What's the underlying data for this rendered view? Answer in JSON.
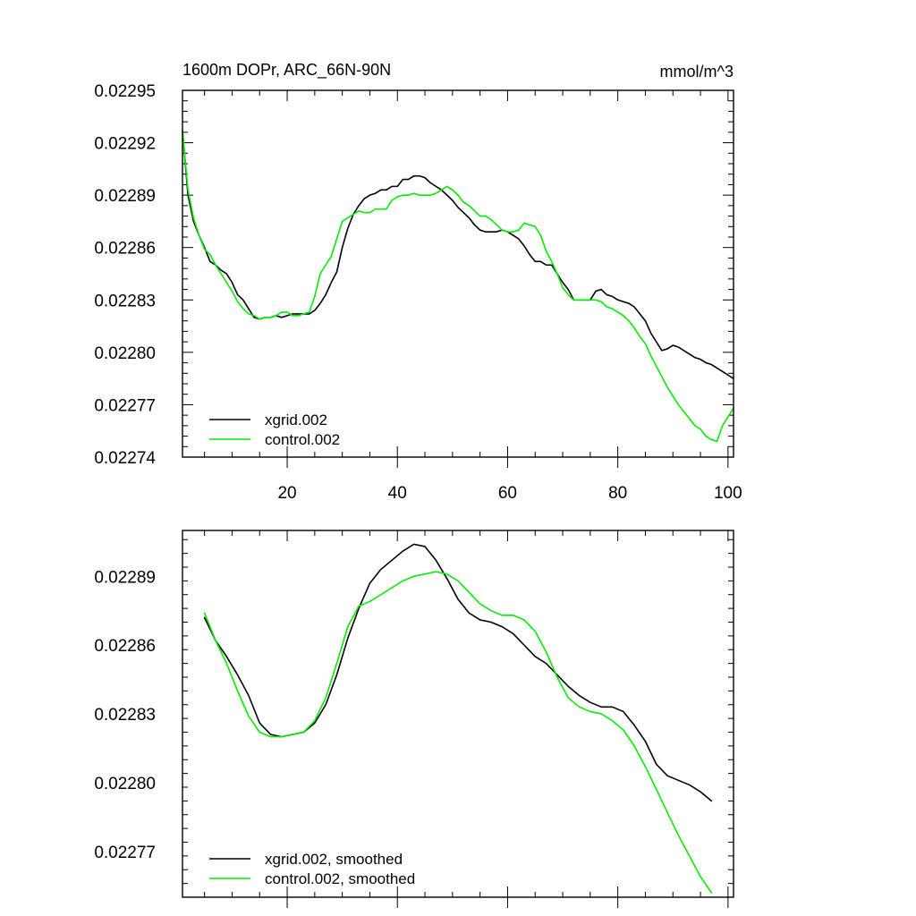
{
  "colors": {
    "series1": "#000000",
    "series2": "#00ee00",
    "axis": "#000000",
    "background": "#ffffff"
  },
  "chart_data": [
    {
      "type": "line",
      "title": "1600m DOPr, ARC_66N-90N",
      "units": "mmol/m^3",
      "xlabel": "",
      "ylabel": "",
      "xlim": [
        1,
        101
      ],
      "ylim": [
        0.02274,
        0.02295
      ],
      "x_major_ticks": [
        20,
        40,
        60,
        80,
        100
      ],
      "x_tick_labels": [
        "20",
        "40",
        "60",
        "80",
        "100"
      ],
      "y_major_ticks": [
        0.02274,
        0.02277,
        0.0228,
        0.02283,
        0.02286,
        0.02289,
        0.02292,
        0.02295
      ],
      "y_tick_labels": [
        "0.02274",
        "0.02277",
        "0.02280",
        "0.02283",
        "0.02286",
        "0.02289",
        "0.02292",
        "0.02295"
      ],
      "legend_position": "bottom-left",
      "series": [
        {
          "name": "xgrid.002",
          "color": "#000000",
          "x": [
            1,
            2,
            3,
            4,
            5,
            6,
            7,
            8,
            9,
            10,
            11,
            12,
            13,
            14,
            15,
            16,
            17,
            18,
            19,
            20,
            21,
            22,
            23,
            24,
            25,
            26,
            27,
            28,
            29,
            30,
            31,
            32,
            33,
            34,
            35,
            36,
            37,
            38,
            39,
            40,
            41,
            42,
            43,
            44,
            45,
            46,
            47,
            48,
            49,
            50,
            51,
            52,
            53,
            54,
            55,
            56,
            57,
            58,
            59,
            60,
            61,
            62,
            63,
            64,
            65,
            66,
            67,
            68,
            69,
            70,
            71,
            72,
            73,
            74,
            75,
            76,
            77,
            78,
            79,
            80,
            81,
            82,
            83,
            84,
            85,
            86,
            87,
            88,
            89,
            90,
            91,
            92,
            93,
            94,
            95,
            96,
            97,
            98,
            99,
            100,
            101
          ],
          "values": [
            0.022927,
            0.02289,
            0.022875,
            0.022867,
            0.02286,
            0.022852,
            0.02285,
            0.022847,
            0.022845,
            0.02284,
            0.022833,
            0.02283,
            0.022825,
            0.02282,
            0.022819,
            0.02282,
            0.02282,
            0.022821,
            0.02282,
            0.022821,
            0.022822,
            0.022822,
            0.022822,
            0.022822,
            0.022824,
            0.022828,
            0.022833,
            0.02284,
            0.022846,
            0.02286,
            0.022871,
            0.022879,
            0.022884,
            0.022888,
            0.02289,
            0.022891,
            0.022893,
            0.022893,
            0.022895,
            0.022895,
            0.022899,
            0.022899,
            0.022901,
            0.022901,
            0.0229,
            0.022897,
            0.022895,
            0.022893,
            0.02289,
            0.022887,
            0.022883,
            0.02288,
            0.022877,
            0.022873,
            0.02287,
            0.022869,
            0.022869,
            0.022869,
            0.02287,
            0.022869,
            0.022867,
            0.022865,
            0.022861,
            0.022856,
            0.022852,
            0.022852,
            0.02285,
            0.02285,
            0.022845,
            0.02284,
            0.022836,
            0.02283,
            0.02283,
            0.02283,
            0.02283,
            0.022835,
            0.022836,
            0.022833,
            0.022832,
            0.02283,
            0.022829,
            0.022828,
            0.022826,
            0.022822,
            0.022818,
            0.022811,
            0.022806,
            0.022801,
            0.022802,
            0.022804,
            0.022803,
            0.022801,
            0.022799,
            0.022797,
            0.022796,
            0.022794,
            0.022793,
            0.022791,
            0.022789,
            0.022787,
            0.022785
          ]
        },
        {
          "name": "control.002",
          "color": "#00ee00",
          "x": [
            1,
            2,
            3,
            4,
            5,
            6,
            7,
            8,
            9,
            10,
            11,
            12,
            13,
            14,
            15,
            16,
            17,
            18,
            19,
            20,
            21,
            22,
            23,
            24,
            25,
            26,
            27,
            28,
            29,
            30,
            31,
            32,
            33,
            34,
            35,
            36,
            37,
            38,
            39,
            40,
            41,
            42,
            43,
            44,
            45,
            46,
            47,
            48,
            49,
            50,
            51,
            52,
            53,
            54,
            55,
            56,
            57,
            58,
            59,
            60,
            61,
            62,
            63,
            64,
            65,
            66,
            67,
            68,
            69,
            70,
            71,
            72,
            73,
            74,
            75,
            76,
            77,
            78,
            79,
            80,
            81,
            82,
            83,
            84,
            85,
            86,
            87,
            88,
            89,
            90,
            91,
            92,
            93,
            94,
            95,
            96,
            97,
            98,
            99,
            100,
            101
          ],
          "values": [
            0.022927,
            0.022893,
            0.022877,
            0.022867,
            0.022859,
            0.022856,
            0.02285,
            0.022845,
            0.02284,
            0.022835,
            0.022829,
            0.022825,
            0.022822,
            0.022821,
            0.022819,
            0.02282,
            0.02282,
            0.022821,
            0.022823,
            0.022823,
            0.022821,
            0.022821,
            0.022822,
            0.022823,
            0.022832,
            0.022845,
            0.02285,
            0.022855,
            0.022865,
            0.022875,
            0.022877,
            0.022879,
            0.022881,
            0.02288,
            0.02288,
            0.022882,
            0.022882,
            0.022882,
            0.022887,
            0.022889,
            0.02289,
            0.02289,
            0.022891,
            0.02289,
            0.02289,
            0.02289,
            0.022891,
            0.022893,
            0.022895,
            0.022893,
            0.02289,
            0.022886,
            0.022884,
            0.022881,
            0.022878,
            0.022878,
            0.022876,
            0.022873,
            0.02287,
            0.022869,
            0.022869,
            0.02287,
            0.022874,
            0.022873,
            0.022872,
            0.022867,
            0.022858,
            0.022852,
            0.022845,
            0.022837,
            0.022833,
            0.02283,
            0.02283,
            0.02283,
            0.02283,
            0.02283,
            0.022829,
            0.022826,
            0.022825,
            0.022823,
            0.022821,
            0.022818,
            0.022814,
            0.022809,
            0.022805,
            0.022798,
            0.022792,
            0.022786,
            0.02278,
            0.022775,
            0.02277,
            0.022766,
            0.022762,
            0.022758,
            0.022756,
            0.022752,
            0.02275,
            0.022749,
            0.022758,
            0.022763,
            0.022768
          ]
        }
      ]
    },
    {
      "type": "line",
      "title": "",
      "xlabel": "",
      "ylabel": "",
      "xlim": [
        1,
        101
      ],
      "ylim": [
        0.02275,
        0.02291
      ],
      "x_major_ticks": [
        20,
        40,
        60,
        80,
        100
      ],
      "y_major_ticks": [
        0.02277,
        0.0228,
        0.02283,
        0.02286,
        0.02289
      ],
      "y_tick_labels": [
        "0.02277",
        "0.02280",
        "0.02283",
        "0.02286",
        "0.02289"
      ],
      "legend_position": "bottom-left",
      "series": [
        {
          "name": "xgrid.002, smoothed",
          "color": "#000000",
          "x": [
            5,
            7,
            9,
            11,
            13,
            15,
            17,
            19,
            21,
            23,
            25,
            27,
            29,
            31,
            33,
            35,
            37,
            39,
            41,
            43,
            45,
            47,
            49,
            51,
            53,
            55,
            57,
            59,
            61,
            63,
            65,
            67,
            69,
            71,
            73,
            75,
            77,
            79,
            81,
            83,
            85,
            87,
            89,
            91,
            93,
            95,
            97
          ],
          "values": [
            0.022872,
            0.022862,
            0.022855,
            0.022847,
            0.022838,
            0.022826,
            0.022821,
            0.02282,
            0.022821,
            0.022822,
            0.022826,
            0.022834,
            0.022847,
            0.022863,
            0.022876,
            0.022887,
            0.022893,
            0.022897,
            0.022901,
            0.022904,
            0.022903,
            0.022897,
            0.022889,
            0.02288,
            0.022874,
            0.022871,
            0.02287,
            0.022868,
            0.022865,
            0.02286,
            0.022855,
            0.022852,
            0.022847,
            0.022842,
            0.022838,
            0.022835,
            0.022833,
            0.022833,
            0.022831,
            0.022825,
            0.022818,
            0.022808,
            0.022803,
            0.022801,
            0.022799,
            0.022796,
            0.022792
          ]
        },
        {
          "name": "control.002, smoothed",
          "color": "#00ee00",
          "x": [
            5,
            7,
            9,
            11,
            13,
            15,
            17,
            19,
            21,
            23,
            25,
            27,
            29,
            31,
            33,
            35,
            37,
            39,
            41,
            43,
            45,
            47,
            49,
            51,
            53,
            55,
            57,
            59,
            61,
            63,
            65,
            67,
            69,
            71,
            73,
            75,
            77,
            79,
            81,
            83,
            85,
            87,
            89,
            91,
            93,
            95,
            97
          ],
          "values": [
            0.022874,
            0.022862,
            0.022852,
            0.02284,
            0.022829,
            0.022822,
            0.02282,
            0.02282,
            0.022821,
            0.022822,
            0.022827,
            0.022837,
            0.022852,
            0.022868,
            0.022877,
            0.022879,
            0.022882,
            0.022885,
            0.022888,
            0.02289,
            0.022891,
            0.022892,
            0.022891,
            0.022888,
            0.022883,
            0.022878,
            0.022875,
            0.022873,
            0.022873,
            0.022871,
            0.022866,
            0.022857,
            0.022846,
            0.022837,
            0.022833,
            0.022831,
            0.02283,
            0.022827,
            0.022823,
            0.022816,
            0.022807,
            0.022797,
            0.022787,
            0.022777,
            0.022768,
            0.022759,
            0.022752
          ]
        }
      ]
    }
  ]
}
